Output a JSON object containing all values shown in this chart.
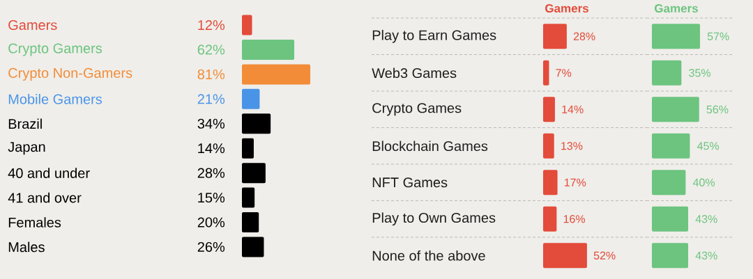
{
  "chart_data": [
    {
      "type": "bar",
      "orientation": "horizontal",
      "categories": [
        "Gamers",
        "Crypto Gamers",
        "Crypto Non-Gamers",
        "Mobile Gamers",
        "Brazil",
        "Japan",
        "40 and under",
        "41 and over",
        "Females",
        "Males"
      ],
      "values": [
        12,
        62,
        81,
        21,
        34,
        14,
        28,
        15,
        20,
        26
      ],
      "value_labels": [
        "12%",
        "62%",
        "81%",
        "21%",
        "34%",
        "14%",
        "28%",
        "15%",
        "20%",
        "26%"
      ],
      "colors": [
        "#e34b3a",
        "#6cc47f",
        "#f28c38",
        "#4a94e8",
        "#000000",
        "#000000",
        "#000000",
        "#000000",
        "#000000",
        "#000000"
      ]
    },
    {
      "type": "bar",
      "orientation": "horizontal",
      "categories": [
        "Play to Earn Games",
        "Web3 Games",
        "Crypto Games",
        "Blockchain Games",
        "NFT Games",
        "Play to Own Games",
        "None of the above"
      ],
      "series": [
        {
          "name": "Gamers",
          "color": "#e34b3a",
          "values": [
            28,
            7,
            14,
            13,
            17,
            16,
            52
          ],
          "value_labels": [
            "28%",
            "7%",
            "14%",
            "13%",
            "17%",
            "16%",
            "52%"
          ]
        }
      ],
      "grid": "y"
    },
    {
      "type": "bar",
      "orientation": "horizontal",
      "categories": [
        null,
        null,
        null,
        null,
        null,
        null,
        null
      ],
      "series": [
        {
          "name": "Gamers",
          "color": "#6cc47f",
          "values": [
            57,
            35,
            56,
            45,
            40,
            43,
            43
          ],
          "value_labels": [
            "57%",
            "35%",
            "56%",
            "45%",
            "40%",
            "43%",
            "43%"
          ]
        }
      ],
      "grid": "y"
    }
  ]
}
